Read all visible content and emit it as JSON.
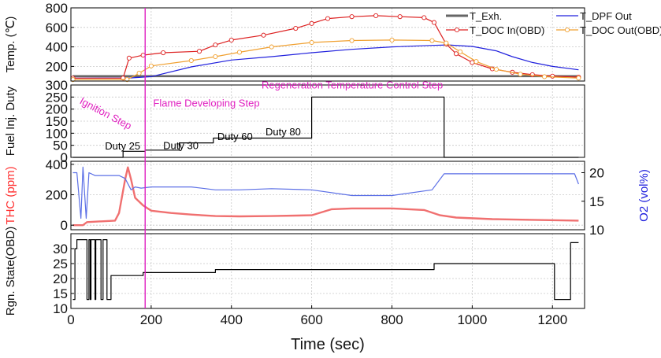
{
  "chart_data": {
    "type": "line",
    "xlabel": "Time (sec)",
    "xlim": [
      0,
      1280
    ],
    "xticks": [
      0,
      200,
      400,
      600,
      800,
      1000,
      1200
    ],
    "panels": [
      {
        "id": "temperature",
        "ylabel": "Temp. (℃)",
        "ylim": [
          50,
          800
        ],
        "yticks": [
          200,
          400,
          600,
          800
        ],
        "legend": [
          {
            "name": "T_Exh.",
            "color": "#666666"
          },
          {
            "name": "T_DPF Out",
            "color": "#2020dd"
          },
          {
            "name": "T_DOC In(OBD)",
            "color": "#dd2020"
          },
          {
            "name": "T_DOC Out(OBD)",
            "color": "#f0a030"
          }
        ],
        "series": [
          {
            "name": "T_Exh.",
            "color": "#666666",
            "x": [
              5,
              1265
            ],
            "y": [
              100,
              100
            ]
          },
          {
            "name": "T_DPF Out",
            "color": "#2020dd",
            "x": [
              5,
              150,
              200,
              300,
              400,
              500,
              600,
              700,
              800,
              900,
              940,
              1000,
              1060,
              1100,
              1150,
              1200,
              1265
            ],
            "y": [
              80,
              82,
              95,
              195,
              265,
              300,
              340,
              375,
              400,
              415,
              420,
              405,
              360,
              300,
              240,
              200,
              165
            ]
          },
          {
            "name": "T_DOC In(OBD)",
            "color": "#dd2020",
            "x": [
              5,
              130,
              145,
              180,
              230,
              320,
              360,
              400,
              480,
              560,
              600,
              640,
              700,
              760,
              820,
              880,
              905,
              935,
              960,
              1000,
              1050,
              1100,
              1150,
              1200,
              1265
            ],
            "y": [
              80,
              80,
              285,
              315,
              340,
              355,
              420,
              470,
              520,
              590,
              640,
              690,
              710,
              720,
              710,
              700,
              650,
              430,
              330,
              240,
              175,
              140,
              115,
              100,
              90
            ]
          },
          {
            "name": "T_DOC Out(OBD)",
            "color": "#f0a030",
            "x": [
              5,
              140,
              170,
              200,
              300,
              360,
              420,
              500,
              600,
              700,
              800,
              900,
              935,
              970,
              1010,
              1060,
              1120,
              1180,
              1265
            ],
            "y": [
              65,
              65,
              130,
              205,
              260,
              300,
              345,
              400,
              445,
              465,
              470,
              465,
              440,
              350,
              250,
              170,
              120,
              95,
              80
            ]
          }
        ]
      },
      {
        "id": "fuel",
        "ylabel": "Fuel Inj. Duty",
        "ylim": [
          0,
          300
        ],
        "yticks": [
          0,
          50,
          100,
          150,
          200,
          250,
          300
        ],
        "series": [
          {
            "name": "Fuel Inj. Duty",
            "color": "#000000",
            "x": [
              5,
              130,
              130,
              185,
              185,
              270,
              270,
              355,
              355,
              440,
              440,
              485,
              485,
              600,
              600,
              930,
              930,
              1265
            ],
            "y": [
              0,
              0,
              25,
              25,
              30,
              30,
              60,
              60,
              80,
              80,
              80,
              80,
              80,
              80,
              250,
              250,
              0,
              0
            ]
          }
        ]
      },
      {
        "id": "thc_o2",
        "ylabel": "THC (ppm)",
        "ylabel_right": "O2 (vol%)",
        "ylim": [
          -30,
          420
        ],
        "yticks": [
          0,
          200,
          400
        ],
        "ylim_right": [
          10,
          22
        ],
        "yticks_right": [
          10,
          15,
          20
        ],
        "series": [
          {
            "name": "THC (ppm)",
            "color": "#f07070",
            "axis": "left",
            "x": [
              5,
              30,
              40,
              110,
              120,
              135,
              142,
              150,
              160,
              180,
              200,
              250,
              300,
              360,
              420,
              500,
              600,
              650,
              700,
              800,
              880,
              920,
              960,
              1050,
              1150,
              1265
            ],
            "y": [
              0,
              0,
              20,
              30,
              80,
              300,
              380,
              300,
              180,
              130,
              95,
              80,
              70,
              60,
              58,
              60,
              65,
              105,
              110,
              110,
              100,
              65,
              50,
              40,
              35,
              30
            ]
          },
          {
            "name": "O2 (vol%)",
            "color": "#5b6fe6",
            "axis": "right",
            "x": [
              5,
              15,
              25,
              30,
              38,
              45,
              60,
              100,
              120,
              135,
              150,
              160,
              175,
              200,
              300,
              360,
              420,
              500,
              600,
              700,
              800,
              900,
              930,
              1000,
              1100,
              1200,
              1255,
              1265
            ],
            "y": [
              20,
              20,
              12,
              21,
              12,
              20,
              19.5,
              19.5,
              19.5,
              19,
              17,
              17.5,
              17.3,
              17.5,
              17.5,
              17,
              17,
              17.2,
              17,
              16,
              16,
              17,
              19.8,
              19.8,
              19.8,
              19.8,
              19.8,
              18
            ]
          }
        ]
      },
      {
        "id": "rgn_state",
        "ylabel": "Rgn. State(OBD)",
        "ylim": [
          10,
          35
        ],
        "yticks": [
          10,
          15,
          20,
          25,
          30
        ],
        "series": [
          {
            "name": "Rgn. State(OBD)",
            "color": "#000000",
            "x": [
              5,
              10,
              10,
              15,
              15,
              40,
              40,
              45,
              45,
              48,
              48,
              50,
              50,
              60,
              60,
              62,
              62,
              75,
              75,
              80,
              80,
              90,
              90,
              100,
              100,
              180,
              180,
              360,
              360,
              905,
              905,
              1205,
              1205,
              1245,
              1245,
              1265
            ],
            "y": [
              13,
              13,
              30,
              30,
              33,
              33,
              13,
              13,
              33,
              33,
              13,
              13,
              33,
              33,
              13,
              13,
              33,
              33,
              13,
              13,
              33,
              33,
              13,
              13,
              21,
              21,
              22,
              22,
              23,
              23,
              25,
              25,
              13,
              13,
              32,
              32
            ]
          }
        ]
      }
    ],
    "vline": {
      "x": 185,
      "color": "#e020c0"
    },
    "annotations": [
      {
        "panel": "fuel",
        "text": "Ignition Step",
        "x": 20,
        "y": 225,
        "color": "#e020c0",
        "rotate": 28
      },
      {
        "panel": "fuel",
        "text": "Flame Developing Step",
        "x": 205,
        "y": 210,
        "color": "#e020c0"
      },
      {
        "panel": "fuel",
        "text": "Regeneration Temperature Control Step",
        "x": 475,
        "y": 285,
        "color": "#e020c0"
      },
      {
        "panel": "fuel",
        "text": "Duty 25",
        "x": 85,
        "y": 32,
        "color": "#000000"
      },
      {
        "panel": "fuel",
        "text": "Duty 30",
        "x": 230,
        "y": 35,
        "color": "#000000"
      },
      {
        "panel": "fuel",
        "text": "Duty 60",
        "x": 365,
        "y": 72,
        "color": "#000000"
      },
      {
        "panel": "fuel",
        "text": "Duty 80",
        "x": 485,
        "y": 92,
        "color": "#000000"
      }
    ]
  }
}
